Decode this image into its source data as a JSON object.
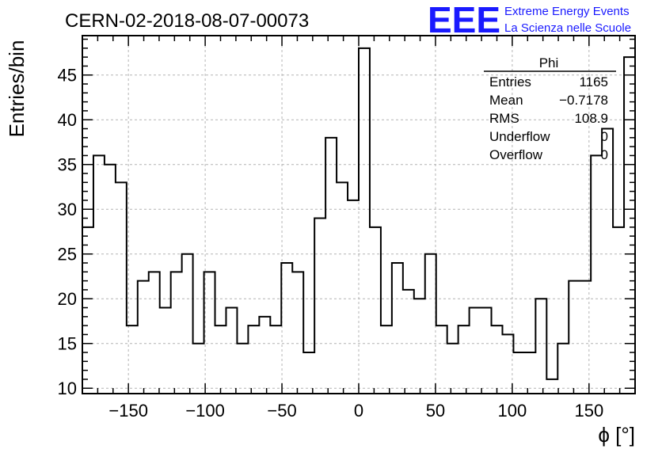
{
  "header": {
    "run_title": "CERN-02-2018-08-07-00073",
    "logo_text": "EEE",
    "logo_line1": "Extreme Energy Events",
    "logo_line2": "La Scienza nelle Scuole",
    "logo_color": "#1a1aff"
  },
  "stats": {
    "name": "Phi",
    "rows": [
      {
        "label": "Entries",
        "value": "1165"
      },
      {
        "label": "Mean",
        "value": "−0.7178"
      },
      {
        "label": "RMS",
        "value": "108.9"
      },
      {
        "label": "Underflow",
        "value": "0"
      },
      {
        "label": "Overflow",
        "value": "0"
      }
    ]
  },
  "chart_data": {
    "type": "histogram",
    "xlabel": "ϕ [°]",
    "ylabel": "Entries/bin",
    "xlim": [
      -180,
      180
    ],
    "ylim": [
      9.4,
      49.4
    ],
    "grid": true,
    "bin_edges_start": -180,
    "bin_width": 7.2,
    "values": [
      28,
      36,
      35,
      33,
      17,
      22,
      23,
      19,
      23,
      25,
      15,
      23,
      17,
      19,
      15,
      17,
      18,
      17,
      24,
      23,
      14,
      29,
      38,
      33,
      31,
      48,
      28,
      17,
      24,
      21,
      20,
      25,
      17,
      15,
      17,
      19,
      19,
      17,
      16,
      14,
      14,
      20,
      11,
      15,
      22,
      22,
      36,
      39,
      28,
      47
    ],
    "x_ticks": [
      -150,
      -100,
      -50,
      0,
      50,
      100,
      150
    ],
    "x_tick_labels": [
      "−150",
      "−100",
      "−50",
      "0",
      "50",
      "100",
      "150"
    ],
    "y_ticks": [
      10,
      15,
      20,
      25,
      30,
      35,
      40,
      45
    ],
    "y_tick_labels": [
      "10",
      "15",
      "20",
      "25",
      "30",
      "35",
      "40",
      "45"
    ],
    "line_color": "#000000",
    "grid_color": "#b4b4b4"
  }
}
